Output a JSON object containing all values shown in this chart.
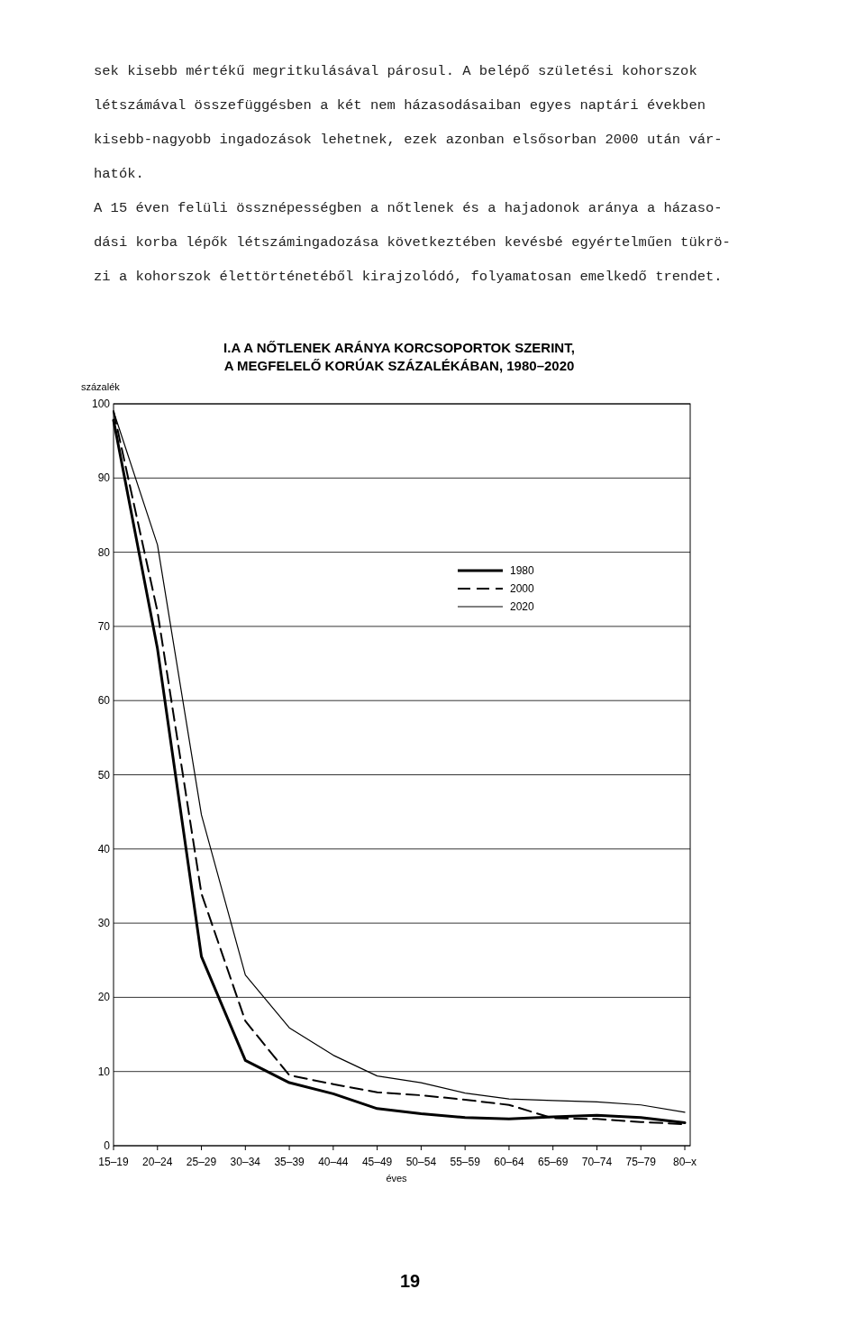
{
  "chart_data": {
    "type": "line",
    "title": "I.A  A NŐTLENEK ARÁNYA KORCSOPORTOK SZERINT,\nA MEGFELELŐ KORÚAK SZÁZALÉKÁBAN, 1980–2020",
    "xlabel": "éves",
    "ylabel": "százalék",
    "annotations": [
      "sek kisebb mértékű megritkulásával párosul.  A belépő születési kohorszok\nlétszámával összefüggésben a két nem házasodásaiban egyes naptári években\nkisebb-nagyobb ingadozások lehetnek, ezek azonban elsősorban 2000 után vár-\nhatók.",
      "A 15 éven felüli össznépességben a nőtlenek és a hajadonok aránya a házaso-\ndási korba lépők létszámingadozása következtében kevésbé egyértelműen tükrö-\nzi a kohorszok élettörténetéből kirajzolódó, folyamatosan emelkedő trendet.",
      "19"
    ],
    "categories": [
      "15–19",
      "20–24",
      "25–29",
      "30–34",
      "35–39",
      "40–44",
      "45–49",
      "50–54",
      "55–59",
      "60–64",
      "65–69",
      "70–74",
      "75–79",
      "80–x"
    ],
    "series": [
      {
        "name": "1980",
        "color": "#000000",
        "line_style": "solid",
        "values": [
          97.8,
          67,
          25.5,
          11.5,
          8.5,
          7,
          5,
          4.3,
          3.8,
          3.6,
          3.9,
          4.1,
          3.8,
          3.1
        ]
      },
      {
        "name": "2000",
        "color": "#000000",
        "line_style": "dashed",
        "values": [
          99,
          72,
          34,
          16.8,
          9.5,
          8.3,
          7.2,
          6.8,
          6.2,
          5.5,
          3.7,
          3.6,
          3.2,
          2.9
        ]
      },
      {
        "name": "2020",
        "color": "#000000",
        "line_style": "solid",
        "values": [
          99,
          81,
          44.6,
          23,
          15.9,
          12.2,
          9.4,
          8.5,
          7.1,
          6.3,
          6.1,
          5.9,
          5.5,
          4.5
        ]
      }
    ],
    "ylim": [
      0,
      100
    ],
    "yticks": [
      0,
      10,
      20,
      30,
      40,
      50,
      60,
      70,
      80,
      90,
      100
    ],
    "grid": "y",
    "legend": "right"
  }
}
